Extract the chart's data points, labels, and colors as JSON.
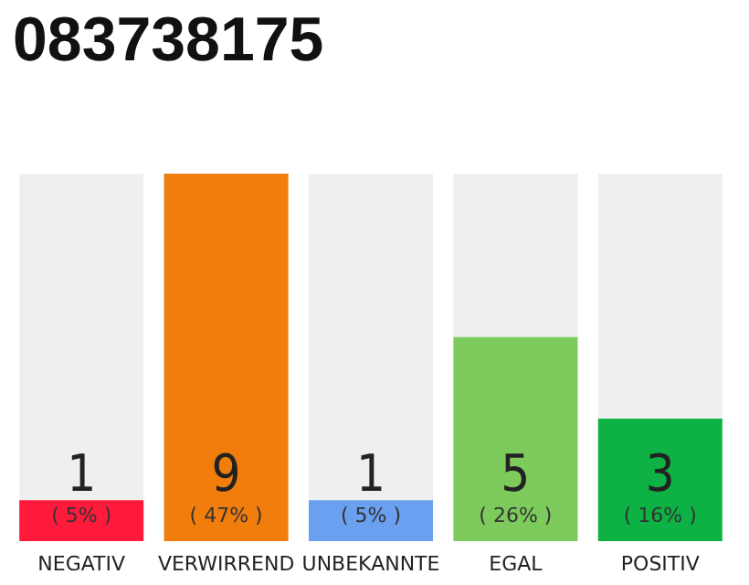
{
  "chart_data": {
    "type": "bar",
    "title": "083738175",
    "categories": [
      "NEGATIV",
      "VERWIRREND",
      "UNBEKANNTE",
      "EGAL",
      "POSITIV"
    ],
    "values": [
      1,
      9,
      1,
      5,
      3
    ],
    "colors": [
      "#ff1a3c",
      "#f07d0c",
      "#6b9fef",
      "#7dcb5c",
      "#0db144"
    ],
    "value_labels": [
      "1\n( 5% )",
      "9\n( 47% )",
      "1\n( 5% )",
      "5\n( 26% )",
      "3\n( 16% )"
    ]
  }
}
